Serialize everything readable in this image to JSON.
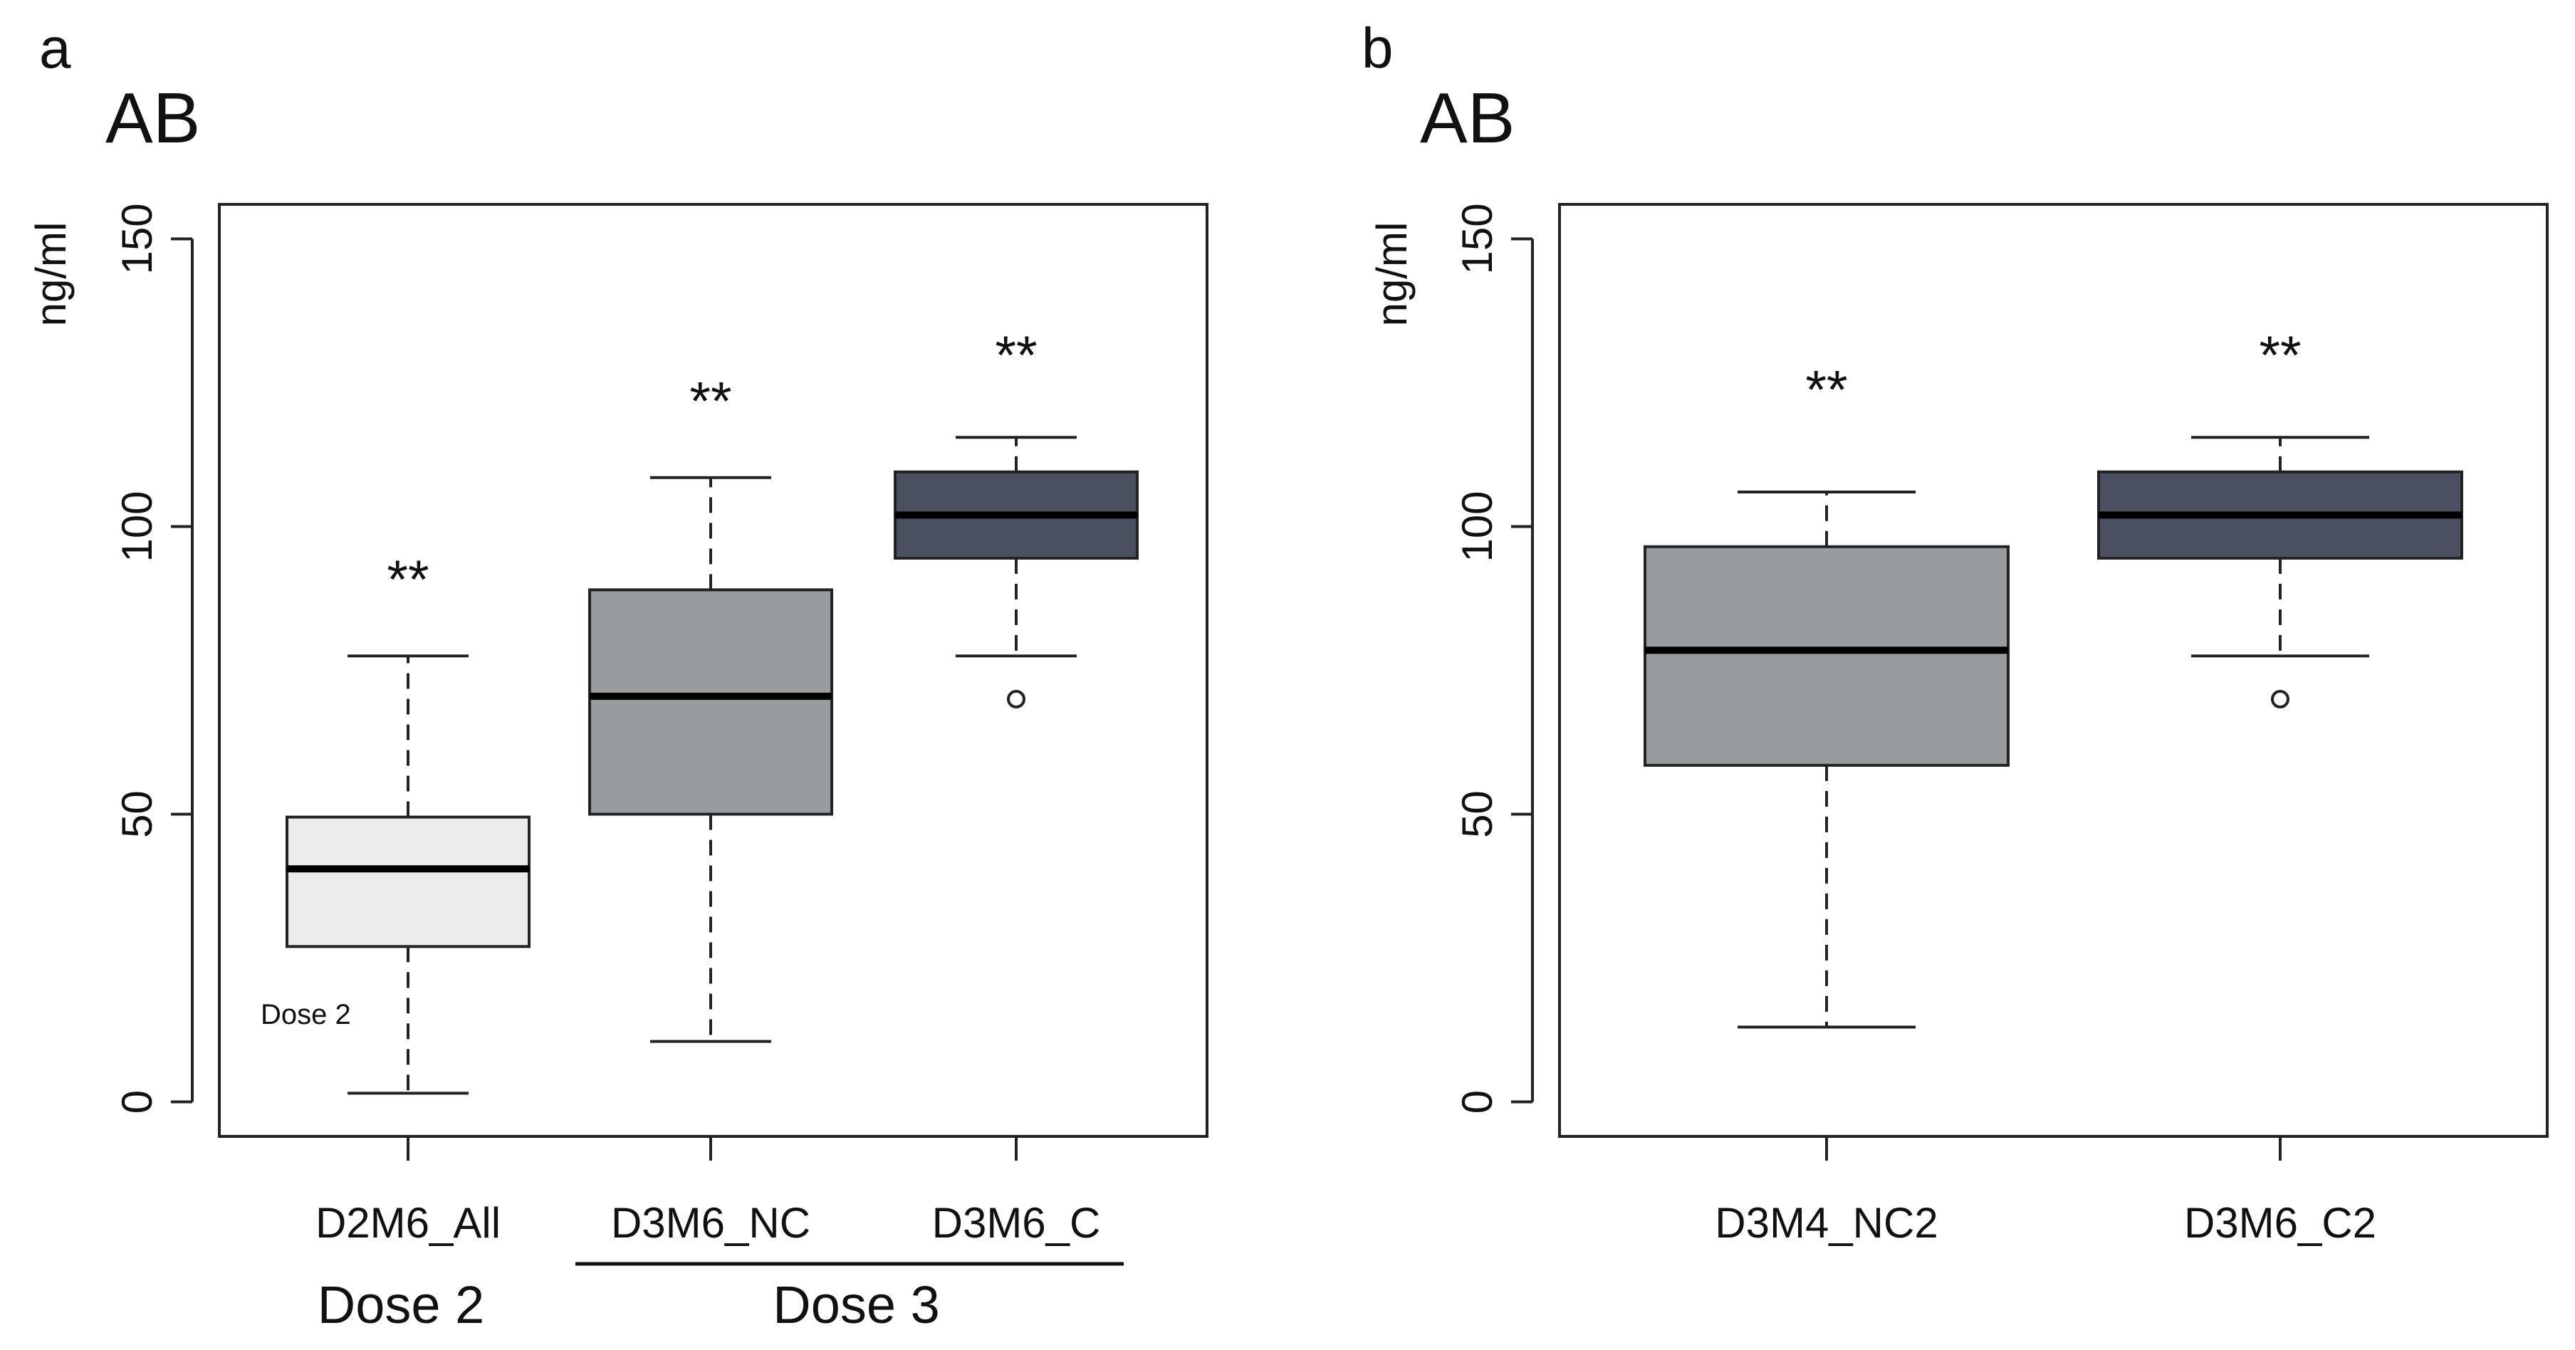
{
  "chart_data": [
    {
      "type": "boxplot",
      "panel_label": "a",
      "title": "AB",
      "ylabel": "ng/ml",
      "ylim": [
        -6,
        156
      ],
      "yticks": [
        0,
        50,
        100,
        150
      ],
      "yticklabels": [
        "0",
        "50",
        "100",
        "150"
      ],
      "categories": [
        "D2M6_All",
        "D3M6_NC",
        "D3M6_C"
      ],
      "boxes": [
        {
          "name": "D2M6_All",
          "min": 1.5,
          "q1": 27,
          "median": 40.5,
          "q3": 49.5,
          "max": 77.5,
          "outliers": [],
          "fill": "#ececec",
          "annotation": "**",
          "annotation_y": 91
        },
        {
          "name": "D3M6_NC",
          "min": 10.5,
          "q1": 50,
          "median": 70.5,
          "q3": 89,
          "max": 108.5,
          "outliers": [],
          "fill": "#979c9f",
          "annotation": "**",
          "annotation_y": 122
        },
        {
          "name": "D3M6_C",
          "min": 77.5,
          "q1": 94.5,
          "median": 102,
          "q3": 109.5,
          "max": 115.5,
          "outliers": [
            70
          ],
          "fill": "#4b5060",
          "annotation": "**",
          "annotation_y": 130
        }
      ],
      "inner_text": "Dose 2",
      "groups": [
        {
          "label": "Dose 2",
          "categories": [
            "D2M6_All"
          ],
          "underline": false
        },
        {
          "label": "Dose 3",
          "categories": [
            "D3M6_NC",
            "D3M6_C"
          ],
          "underline": true
        }
      ]
    },
    {
      "type": "boxplot",
      "panel_label": "b",
      "title": "AB",
      "ylabel": "ng/ml",
      "ylim": [
        -6,
        156
      ],
      "yticks": [
        0,
        50,
        100,
        150
      ],
      "yticklabels": [
        "0",
        "50",
        "100",
        "150"
      ],
      "categories": [
        "D3M4_NC2",
        "D3M6_C2"
      ],
      "boxes": [
        {
          "name": "D3M4_NC2",
          "min": 13,
          "q1": 58.5,
          "median": 78.5,
          "q3": 96.5,
          "max": 106,
          "outliers": [],
          "fill": "#979c9f",
          "annotation": "**",
          "annotation_y": 124
        },
        {
          "name": "D3M6_C2",
          "min": 77.5,
          "q1": 94.5,
          "median": 102,
          "q3": 109.5,
          "max": 115.5,
          "outliers": [
            70
          ],
          "fill": "#4b5060",
          "annotation": "**",
          "annotation_y": 130
        }
      ]
    }
  ]
}
